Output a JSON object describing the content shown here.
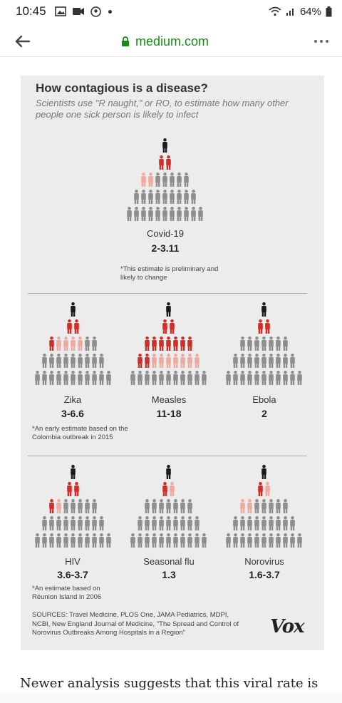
{
  "status": {
    "time": "10:45",
    "battery": "64%"
  },
  "browser": {
    "url": "medium.com"
  },
  "colors": {
    "red": "#d32d27",
    "pink": "#f1a89f",
    "gray": "#8e8e8e",
    "black": "#1b1b1b",
    "link_green": "#1a8917"
  },
  "chart_data": {
    "type": "pictogram",
    "title": "How contagious is a disease?",
    "subtitle": "Scientists use \"R naught,\" or RO, to estimate how many other people one sick person is likely to infect",
    "diseases": [
      {
        "name": "Covid-19",
        "r0": "2-3.11",
        "r_low": 2,
        "r_high": 3.11,
        "note": "*This estimate is preliminary and likely to change"
      },
      {
        "name": "Zika",
        "r0": "3-6.6",
        "r_low": 3,
        "r_high": 6.6,
        "note": "*An early estimate based on the Colombia outbreak in 2015"
      },
      {
        "name": "Measles",
        "r0": "11-18",
        "r_low": 11,
        "r_high": 18,
        "note": ""
      },
      {
        "name": "Ebola",
        "r0": "2",
        "r_low": 2,
        "r_high": 2,
        "note": ""
      },
      {
        "name": "HIV",
        "r0": "3.6-3.7",
        "r_low": 3.6,
        "r_high": 3.7,
        "note": "*An estimate based on Réunion Island in 2006"
      },
      {
        "name": "Seasonal flu",
        "r0": "1.3",
        "r_low": 1.3,
        "r_high": 1.3,
        "note": ""
      },
      {
        "name": "Norovirus",
        "r0": "1.6-3.7",
        "r_low": 1.6,
        "r_high": 3.7,
        "note": ""
      }
    ],
    "sources": "SOURCES: Travel Medicine, PLOS One, JAMA Pediatrics, MDPI, NCBI, New England Journal of Medicine, \"The Spread and Control of Norovirus Outbreaks Among Hospitals in a Region\"",
    "brand": "Vox"
  },
  "article": {
    "snippet": "Newer analysis suggests that this viral rate is"
  }
}
